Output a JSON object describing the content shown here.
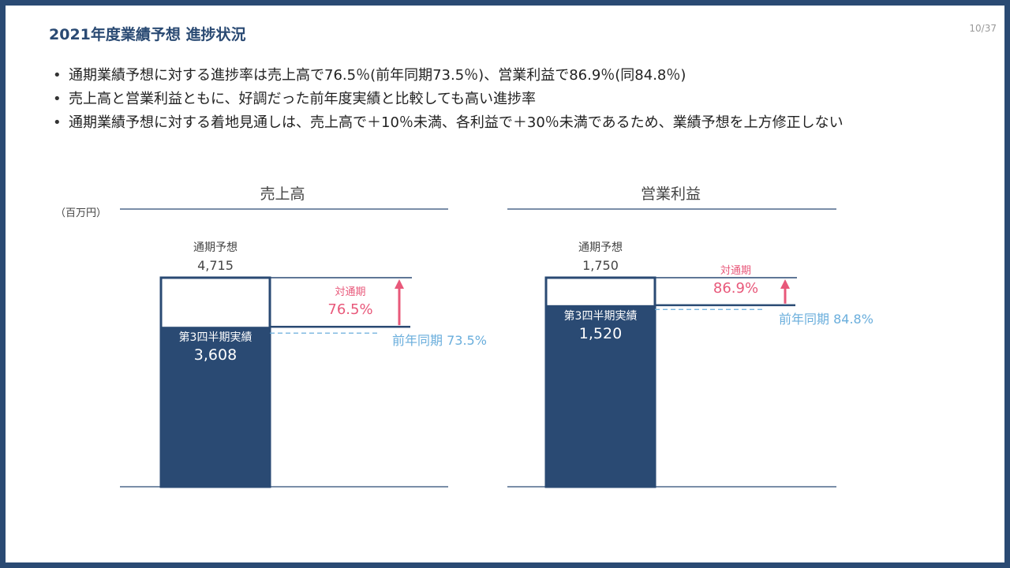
{
  "slide": {
    "title": "2021年度業績予想 進捗状況",
    "page": "10/37",
    "bullets": [
      "通期業績予想に対する進捗率は売上高で76.5％(前年同期73.5％)、営業利益で86.9％(同84.8％)",
      "売上高と営業利益ともに、好調だった前年度実績と比較しても高い進捗率",
      "通期業績予想に対する着地見通しは、売上高で＋10％未満、各利益で＋30％未満であるため、業績予想を上方修正しない"
    ]
  },
  "colors": {
    "navy": "#2a4a73",
    "pink": "#e8587a",
    "light_blue": "#6aaedc",
    "text": "#333333"
  },
  "chart_data": [
    {
      "type": "bar",
      "title": "売上高",
      "unit_label": "（百万円）",
      "forecast_label": "通期予想",
      "forecast_value": 4715,
      "forecast_display": "4,715",
      "actual_label": "第3四半期実績",
      "actual_value": 3608,
      "actual_display": "3,608",
      "progress_label": "対通期",
      "progress_display": "76.5%",
      "prior_label": "前年同期 73.5%",
      "prior_progress": 73.5
    },
    {
      "type": "bar",
      "title": "営業利益",
      "unit_label": "",
      "forecast_label": "通期予想",
      "forecast_value": 1750,
      "forecast_display": "1,750",
      "actual_label": "第3四半期実績",
      "actual_value": 1520,
      "actual_display": "1,520",
      "progress_label": "対通期",
      "progress_display": "86.9%",
      "prior_label": "前年同期 84.8%",
      "prior_progress": 84.8
    }
  ]
}
